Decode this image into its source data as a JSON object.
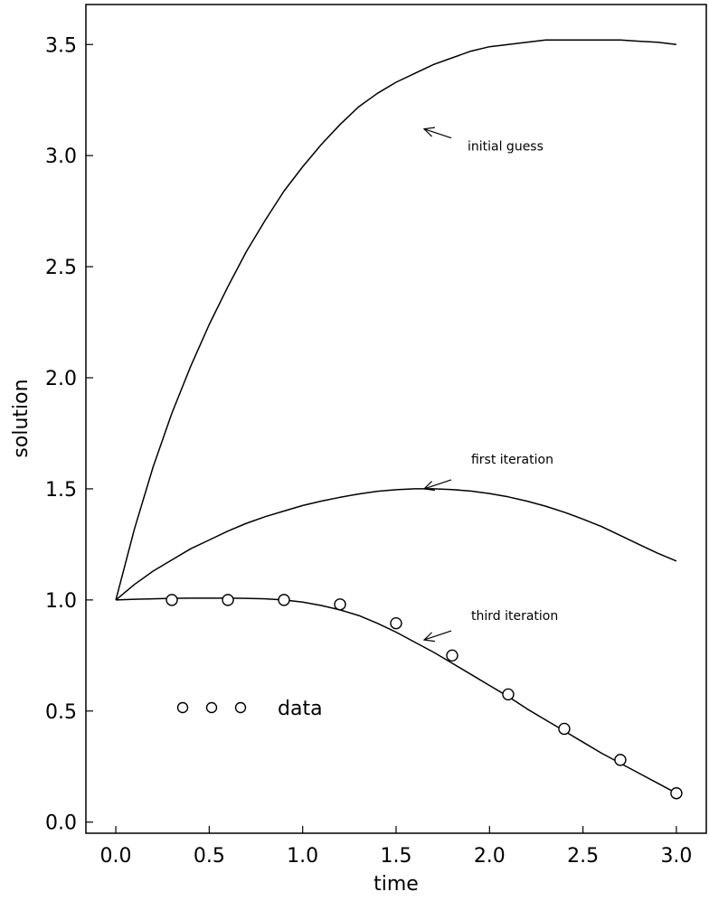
{
  "chart_data": {
    "type": "line",
    "title": "",
    "xlabel": "time",
    "ylabel": "solution",
    "xlim": [
      -0.16,
      3.16
    ],
    "ylim": [
      -0.05,
      3.68
    ],
    "xticks": [
      "0.0",
      "0.5",
      "1.0",
      "1.5",
      "2.0",
      "2.5",
      "3.0"
    ],
    "yticks": [
      "0.0",
      "0.5",
      "1.0",
      "1.5",
      "2.0",
      "2.5",
      "3.0",
      "3.5"
    ],
    "grid": false,
    "series": [
      {
        "name": "initial guess",
        "style": "line",
        "x": [
          0.0,
          0.1,
          0.2,
          0.3,
          0.4,
          0.5,
          0.6,
          0.7,
          0.8,
          0.9,
          1.0,
          1.1,
          1.2,
          1.3,
          1.4,
          1.5,
          1.6,
          1.7,
          1.8,
          1.9,
          2.0,
          2.1,
          2.2,
          2.3,
          2.4,
          2.5,
          2.6,
          2.7,
          2.8,
          2.9,
          3.0
        ],
        "y": [
          1.0,
          1.32,
          1.6,
          1.84,
          2.05,
          2.24,
          2.41,
          2.57,
          2.71,
          2.84,
          2.95,
          3.05,
          3.14,
          3.22,
          3.28,
          3.33,
          3.37,
          3.41,
          3.44,
          3.47,
          3.49,
          3.5,
          3.51,
          3.52,
          3.52,
          3.52,
          3.52,
          3.52,
          3.515,
          3.51,
          3.5
        ]
      },
      {
        "name": "first iteration",
        "style": "line",
        "x": [
          0.0,
          0.1,
          0.2,
          0.3,
          0.4,
          0.5,
          0.6,
          0.7,
          0.8,
          0.9,
          1.0,
          1.1,
          1.2,
          1.3,
          1.4,
          1.5,
          1.6,
          1.7,
          1.8,
          1.9,
          2.0,
          2.1,
          2.2,
          2.3,
          2.4,
          2.5,
          2.6,
          2.7,
          2.8,
          2.9,
          3.0
        ],
        "y": [
          1.0,
          1.07,
          1.13,
          1.18,
          1.23,
          1.27,
          1.31,
          1.345,
          1.375,
          1.4,
          1.425,
          1.445,
          1.462,
          1.477,
          1.489,
          1.496,
          1.5,
          1.5,
          1.497,
          1.49,
          1.479,
          1.464,
          1.445,
          1.422,
          1.395,
          1.364,
          1.33,
          1.29,
          1.25,
          1.21,
          1.175
        ]
      },
      {
        "name": "third iteration",
        "style": "line",
        "x": [
          0.0,
          0.1,
          0.2,
          0.3,
          0.4,
          0.5,
          0.6,
          0.7,
          0.8,
          0.9,
          1.0,
          1.1,
          1.2,
          1.3,
          1.4,
          1.5,
          1.6,
          1.7,
          1.8,
          1.9,
          2.0,
          2.1,
          2.2,
          2.3,
          2.4,
          2.5,
          2.6,
          2.7,
          2.8,
          2.9,
          3.0
        ],
        "y": [
          1.0,
          1.003,
          1.005,
          1.007,
          1.008,
          1.008,
          1.008,
          1.007,
          1.005,
          1.0,
          0.99,
          0.975,
          0.955,
          0.93,
          0.895,
          0.855,
          0.81,
          0.765,
          0.715,
          0.665,
          0.615,
          0.565,
          0.51,
          0.46,
          0.41,
          0.36,
          0.31,
          0.265,
          0.22,
          0.175,
          0.13
        ]
      },
      {
        "name": "data",
        "style": "markers",
        "x": [
          0.3,
          0.6,
          0.9,
          1.2,
          1.5,
          1.8,
          2.1,
          2.4,
          2.7,
          3.0
        ],
        "y": [
          1.0,
          1.0,
          1.0,
          0.98,
          0.895,
          0.75,
          0.575,
          0.42,
          0.28,
          0.13
        ]
      }
    ],
    "annotations": [
      {
        "text": "initial guess",
        "arrow_x": 1.65,
        "arrow_y": 3.12
      },
      {
        "text": "first iteration",
        "arrow_x": 1.65,
        "arrow_y": 1.5
      },
      {
        "text": "third iteration",
        "arrow_x": 1.65,
        "arrow_y": 0.82
      }
    ],
    "legend": {
      "label": "data",
      "markers": 3
    }
  }
}
